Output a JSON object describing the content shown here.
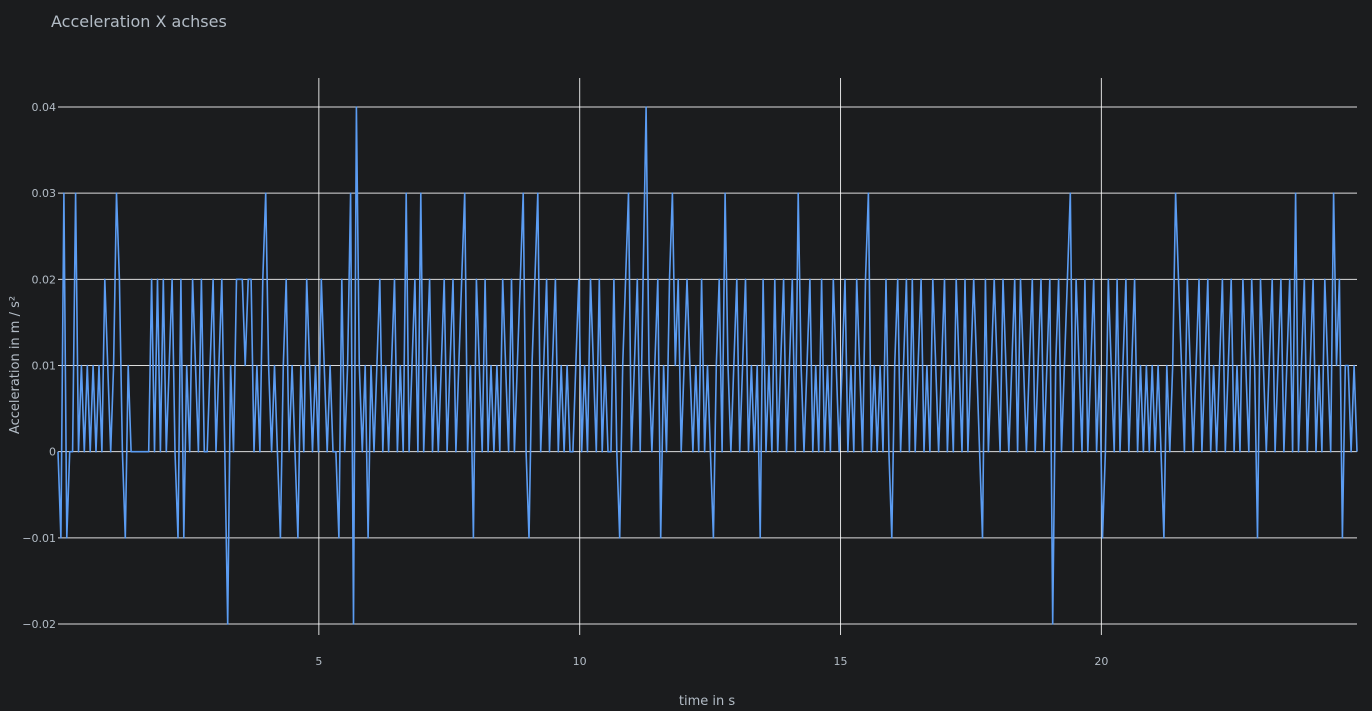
{
  "chart_data": {
    "type": "line",
    "title": "Acceleration X achses",
    "xlabel": "time in s",
    "ylabel": "Acceleration in m / s²",
    "xlim": [
      0,
      24.9
    ],
    "ylim": [
      -0.02,
      0.04
    ],
    "x_ticks": [
      5,
      10,
      15,
      20
    ],
    "y_ticks": [
      -0.02,
      -0.01,
      0,
      0.01,
      0.02,
      0.03,
      0.04
    ],
    "y_tick_labels": [
      "−0.02",
      "−0.01",
      "0",
      "0.01",
      "0.02",
      "0.03",
      "0.04"
    ],
    "grid": true,
    "series": [
      {
        "color": "#5b9cf2",
        "sample_interval": 0.05,
        "values": [
          0,
          -0.01,
          0.03,
          -0.01,
          0,
          0,
          0.03,
          0,
          0.01,
          0,
          0.01,
          0,
          0.01,
          0,
          0.01,
          0,
          0.02,
          0.01,
          0,
          0.01,
          0.03,
          0.02,
          0,
          -0.01,
          0.01,
          0,
          0,
          0,
          0,
          0,
          0,
          0,
          0.02,
          0,
          0.02,
          0,
          0.02,
          0,
          0.01,
          0.02,
          0,
          -0.01,
          0.02,
          -0.01,
          0.01,
          0,
          0.02,
          0.01,
          0,
          0.02,
          0,
          0,
          0.01,
          0.02,
          0,
          0.01,
          0.02,
          0,
          -0.02,
          0.01,
          0,
          0.02,
          0.02,
          0.02,
          0.01,
          0.02,
          0.02,
          0,
          0.01,
          0,
          0.02,
          0.03,
          0.01,
          0,
          0.01,
          0,
          -0.01,
          0.01,
          0.02,
          0,
          0.01,
          0,
          -0.01,
          0.01,
          0,
          0.02,
          0.01,
          0,
          0.01,
          0,
          0.02,
          0.01,
          0,
          0.01,
          0,
          0,
          -0.01,
          0.02,
          0,
          0.01,
          0.03,
          -0.02,
          0.04,
          0.01,
          0,
          0.01,
          -0.01,
          0.01,
          0,
          0.01,
          0.02,
          0,
          0.01,
          0,
          0.01,
          0.02,
          0,
          0.01,
          0,
          0.03,
          0,
          0.01,
          0.02,
          0,
          0.03,
          0,
          0.01,
          0.02,
          0,
          0.01,
          0,
          0.01,
          0.02,
          0,
          0.01,
          0.02,
          0,
          0.01,
          0.02,
          0.03,
          0,
          0.01,
          -0.01,
          0.02,
          0.01,
          0,
          0.02,
          0,
          0.01,
          0,
          0.01,
          0,
          0.02,
          0.01,
          0,
          0.02,
          0,
          0.01,
          0.02,
          0.03,
          0,
          -0.01,
          0.01,
          0.02,
          0.03,
          0,
          0.01,
          0.02,
          0,
          0.01,
          0.02,
          0,
          0.01,
          0,
          0.01,
          0,
          0,
          0.01,
          0.02,
          0,
          0.01,
          0,
          0.02,
          0.01,
          0,
          0.02,
          0,
          0.01,
          0,
          0,
          0.02,
          0,
          -0.01,
          0.01,
          0.02,
          0.03,
          0,
          0.01,
          0.02,
          0,
          0.02,
          0.04,
          0.01,
          0,
          0.01,
          0.02,
          -0.01,
          0.01,
          0,
          0.02,
          0.03,
          0.01,
          0.02,
          0,
          0.01,
          0.02,
          0.01,
          0,
          0.01,
          0,
          0.02,
          0,
          0.01,
          0,
          -0.01,
          0.01,
          0.02,
          0,
          0.03,
          0.01,
          0,
          0.01,
          0.02,
          0,
          0.01,
          0.02,
          0,
          0.01,
          0,
          0.01,
          -0.01,
          0.02,
          0,
          0.01,
          0,
          0.02,
          0,
          0.01,
          0.02,
          0,
          0.01,
          0.02,
          0,
          0.03,
          0.01,
          0,
          0.01,
          0.02,
          0,
          0.01,
          0,
          0.02,
          0,
          0.01,
          0,
          0.02,
          0.01,
          0,
          0.01,
          0.02,
          0,
          0.01,
          0,
          0.02,
          0.01,
          0,
          0.02,
          0.03,
          0,
          0.01,
          0,
          0.01,
          0,
          0.02,
          0,
          -0.01,
          0.01,
          0.02,
          0,
          0.01,
          0.02,
          0,
          0.02,
          0,
          0.01,
          0.02,
          0,
          0.01,
          0,
          0.02,
          0.01,
          0,
          0.01,
          0.02,
          0,
          0.01,
          0,
          0.02,
          0.01,
          0,
          0.02,
          0,
          0.01,
          0.02,
          0.01,
          0,
          -0.01,
          0.02,
          0,
          0.01,
          0.02,
          0.01,
          0,
          0.02,
          0.01,
          0,
          0.01,
          0.02,
          0,
          0.02,
          0.01,
          0,
          0.01,
          0.02,
          0,
          0.01,
          0.02,
          0,
          0.01,
          0.02,
          -0.02,
          0.01,
          0.02,
          0,
          0.01,
          0.02,
          0.03,
          0,
          0.02,
          0.01,
          0,
          0.02,
          0,
          0.01,
          0.02,
          0,
          0.01,
          -0.01,
          0,
          0.02,
          0.01,
          0,
          0.02,
          0,
          0.01,
          0.02,
          0,
          0.01,
          0.02,
          0,
          0.01,
          0,
          0.01,
          0,
          0.01,
          0,
          0.01,
          0,
          -0.01,
          0.01,
          0,
          0.01,
          0.03,
          0.02,
          0.01,
          0,
          0.02,
          0.01,
          0,
          0.01,
          0.02,
          0,
          0.01,
          0.02,
          0,
          0.01,
          0,
          0.01,
          0.02,
          0,
          0.01,
          0.02,
          0,
          0.01,
          0,
          0.02,
          0.01,
          0,
          0.02,
          0.01,
          -0.01,
          0.02,
          0.01,
          0,
          0.01,
          0.02,
          0,
          0.01,
          0.02,
          0,
          0.01,
          0.02,
          0,
          0.03,
          0,
          0.01,
          0.02,
          0,
          0.01,
          0.02,
          0,
          0.01,
          0,
          0.02,
          0.01,
          0,
          0.03,
          0.01,
          0.02,
          -0.01,
          0.01,
          0.01,
          0,
          0.01,
          0
        ]
      }
    ]
  }
}
